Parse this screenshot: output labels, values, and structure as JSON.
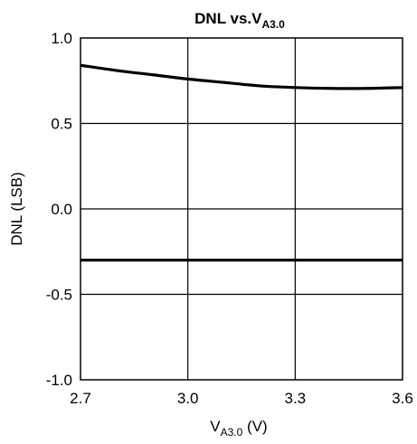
{
  "chart_data": {
    "type": "line",
    "title": "DNL vs.V",
    "title_subscript": "A3.0",
    "xlabel": "V",
    "xlabel_subscript": "A3.0",
    "xlabel_unit": " (V)",
    "ylabel": "DNL (LSB)",
    "xlim": [
      2.7,
      3.6
    ],
    "ylim": [
      -1.0,
      1.0
    ],
    "x_ticks": [
      2.7,
      3.0,
      3.3,
      3.6
    ],
    "x_tick_labels": [
      "2.7",
      "3.0",
      "3.3",
      "3.6"
    ],
    "y_ticks": [
      1.0,
      0.5,
      0.0,
      -0.5,
      -1.0
    ],
    "y_tick_labels": [
      "1.0",
      "0.5",
      "0.0",
      "-0.5",
      "-1.0"
    ],
    "grid": true,
    "series": [
      {
        "x": [
          2.7,
          2.8,
          2.9,
          3.0,
          3.1,
          3.2,
          3.3,
          3.4,
          3.5,
          3.6
        ],
        "y": [
          0.84,
          0.81,
          0.785,
          0.76,
          0.74,
          0.72,
          0.71,
          0.705,
          0.705,
          0.71
        ],
        "color": "#000000"
      },
      {
        "x": [
          2.7,
          2.8,
          2.9,
          3.0,
          3.1,
          3.2,
          3.3,
          3.4,
          3.5,
          3.6
        ],
        "y": [
          -0.3,
          -0.3,
          -0.3,
          -0.3,
          -0.3,
          -0.3,
          -0.3,
          -0.3,
          -0.3,
          -0.3
        ],
        "color": "#000000"
      }
    ]
  }
}
